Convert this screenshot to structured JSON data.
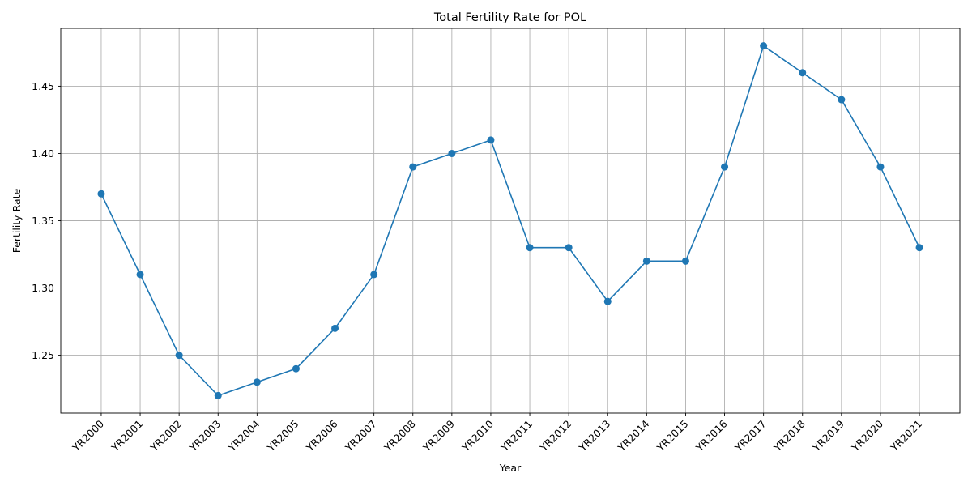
{
  "chart_data": {
    "type": "line",
    "title": "Total Fertility Rate for POL",
    "xlabel": "Year",
    "ylabel": "Fertility Rate",
    "categories": [
      "YR2000",
      "YR2001",
      "YR2002",
      "YR2003",
      "YR2004",
      "YR2005",
      "YR2006",
      "YR2007",
      "YR2008",
      "YR2009",
      "YR2010",
      "YR2011",
      "YR2012",
      "YR2013",
      "YR2014",
      "YR2015",
      "YR2016",
      "YR2017",
      "YR2018",
      "YR2019",
      "YR2020",
      "YR2021"
    ],
    "series": [
      {
        "values": [
          1.37,
          1.31,
          1.25,
          1.22,
          1.23,
          1.24,
          1.27,
          1.31,
          1.39,
          1.4,
          1.41,
          1.33,
          1.33,
          1.29,
          1.32,
          1.32,
          1.39,
          1.48,
          1.46,
          1.44,
          1.39,
          1.33
        ],
        "color": "#1f77b4",
        "marker": "circle"
      }
    ],
    "yticks": [
      "1.25",
      "1.30",
      "1.35",
      "1.40",
      "1.45"
    ],
    "ylim": [
      1.207,
      1.493
    ],
    "grid": true,
    "legend": "none"
  }
}
